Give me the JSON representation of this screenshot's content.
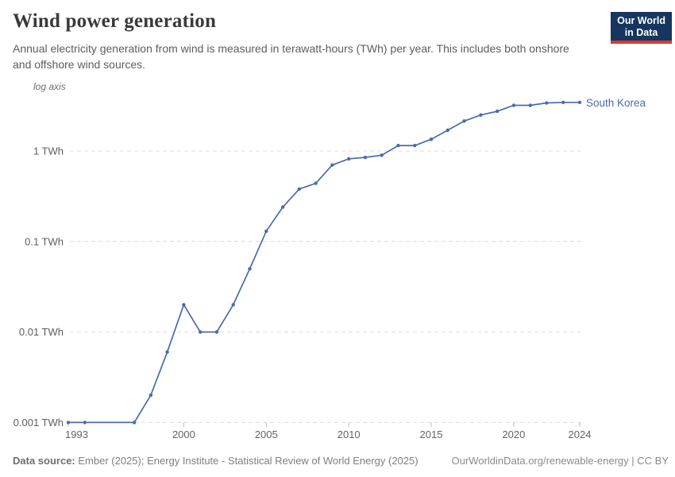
{
  "header": {
    "title": "Wind power generation",
    "subtitle": "Annual electricity generation from wind is measured in terawatt-hours (TWh) per year. This includes both onshore and offshore wind sources.",
    "logo": {
      "line1": "Our World",
      "line2": "in Data"
    }
  },
  "chart_data": {
    "type": "line",
    "title": "Wind power generation",
    "series_label": "South Korea",
    "unit": "TWh",
    "yscale": "log",
    "axis_note": "log axis",
    "x": [
      1993,
      1994,
      1997,
      1998,
      1999,
      2000,
      2001,
      2002,
      2003,
      2004,
      2005,
      2006,
      2007,
      2008,
      2009,
      2010,
      2011,
      2012,
      2013,
      2014,
      2015,
      2016,
      2017,
      2018,
      2019,
      2020,
      2021,
      2022,
      2023,
      2024
    ],
    "values": [
      0.001,
      0.001,
      0.001,
      0.002,
      0.006,
      0.02,
      0.01,
      0.01,
      0.02,
      0.05,
      0.13,
      0.24,
      0.38,
      0.44,
      0.7,
      0.82,
      0.85,
      0.9,
      1.15,
      1.15,
      1.35,
      1.7,
      2.15,
      2.5,
      2.75,
      3.2,
      3.2,
      3.4,
      3.45,
      3.45
    ],
    "xlim": [
      1993,
      2024
    ],
    "ylim": [
      0.001,
      3.9
    ],
    "xticks": [
      1993,
      2000,
      2005,
      2010,
      2015,
      2020,
      2024
    ],
    "ytick_values": [
      0.001,
      0.01,
      0.1,
      1
    ],
    "ytick_labels": [
      "0.001 TWh",
      "0.01 TWh",
      "0.1 TWh",
      "1 TWh"
    ],
    "grid": "horizontal-dashed",
    "legend_position": "end-of-line",
    "line_color": "#4b6bac",
    "grid_color": "#dcdcdc"
  },
  "footer": {
    "source_label": "Data source:",
    "source_text": " Ember (2025); Energy Institute - Statistical Review of World Energy (2025)",
    "link_text": "OurWorldinData.org/renewable-energy | CC BY"
  }
}
